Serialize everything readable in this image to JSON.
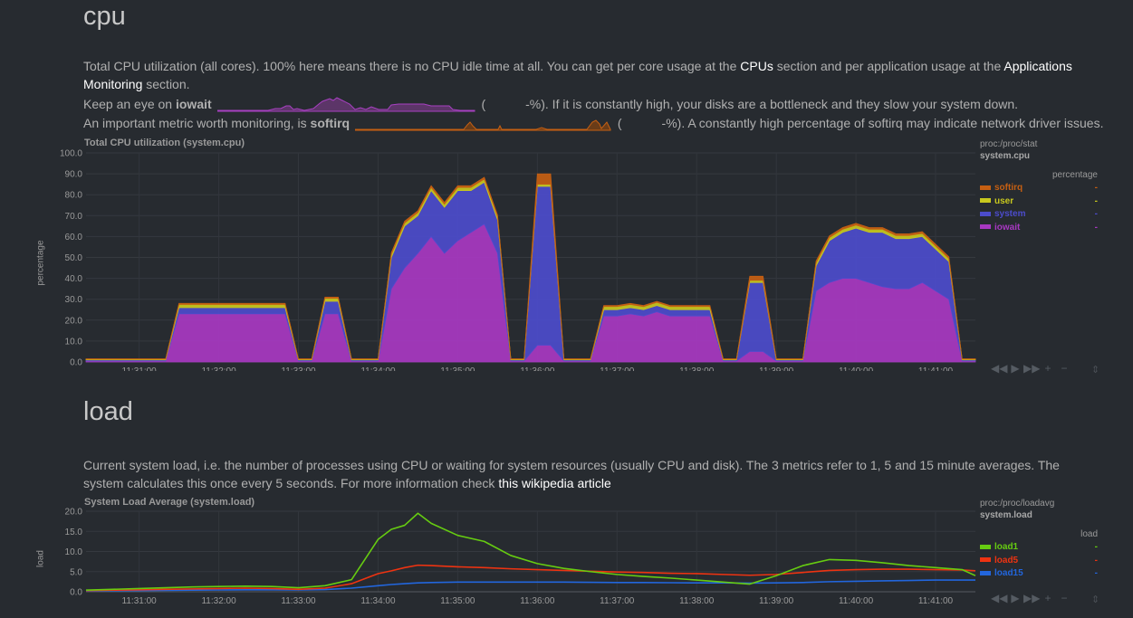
{
  "cpu": {
    "title": "cpu",
    "desc": {
      "p1": "Total CPU utilization (all cores). 100% here means there is no CPU idle time at all. You can get per core usage at the ",
      "link1": "CPUs",
      "p2": " section and per application usage at the ",
      "link2": "Applications Monitoring",
      "p3": " section."
    },
    "iowait_line": {
      "pre": "Keep an eye on ",
      "metric": "iowait",
      "paren_open": "(",
      "value": "-%",
      "post": "). If it is constantly high, your disks are a bottleneck and they slow your system down."
    },
    "softirq_line": {
      "pre": "An important metric worth monitoring, is ",
      "metric": "softirq",
      "paren_open": "(",
      "value": "-%",
      "post": "). A constantly high percentage of softirq may indicate network driver issues."
    },
    "chart_title": "Total CPU utilization (system.cpu)",
    "legend": {
      "context": "proc:/proc/stat",
      "chart_id": "system.cpu",
      "units": "percentage",
      "items": [
        {
          "name": "softirq",
          "value": "-",
          "color": "#c55f12"
        },
        {
          "name": "user",
          "value": "-",
          "color": "#c8c81e"
        },
        {
          "name": "system",
          "value": "-",
          "color": "#4c4ccc"
        },
        {
          "name": "iowait",
          "value": "-",
          "color": "#a838c2"
        }
      ]
    },
    "chart_data": {
      "type": "area",
      "title": "Total CPU utilization (system.cpu)",
      "ylabel": "percentage",
      "ylim": [
        0,
        100
      ],
      "yticks": [
        "0.0",
        "10.0",
        "20.0",
        "30.0",
        "40.0",
        "50.0",
        "60.0",
        "70.0",
        "80.0",
        "90.0",
        "100.0"
      ],
      "xticks": [
        "11:31:00",
        "11:32:00",
        "11:33:00",
        "11:34:00",
        "11:35:00",
        "11:36:00",
        "11:37:00",
        "11:38:00",
        "11:39:00",
        "11:40:00",
        "11:41:00"
      ],
      "x": [
        "11:30:20",
        "11:30:30",
        "11:30:40",
        "11:30:50",
        "11:31:00",
        "11:31:10",
        "11:31:20",
        "11:31:30",
        "11:31:40",
        "11:31:50",
        "11:32:00",
        "11:32:10",
        "11:32:20",
        "11:32:30",
        "11:32:40",
        "11:32:50",
        "11:33:00",
        "11:33:10",
        "11:33:20",
        "11:33:30",
        "11:33:40",
        "11:33:50",
        "11:34:00",
        "11:34:10",
        "11:34:20",
        "11:34:30",
        "11:34:40",
        "11:34:50",
        "11:35:00",
        "11:35:10",
        "11:35:20",
        "11:35:30",
        "11:35:40",
        "11:35:50",
        "11:36:00",
        "11:36:10",
        "11:36:20",
        "11:36:30",
        "11:36:40",
        "11:36:50",
        "11:37:00",
        "11:37:10",
        "11:37:20",
        "11:37:30",
        "11:37:40",
        "11:37:50",
        "11:38:00",
        "11:38:10",
        "11:38:20",
        "11:38:30",
        "11:38:40",
        "11:38:50",
        "11:39:00",
        "11:39:10",
        "11:39:20",
        "11:39:30",
        "11:39:40",
        "11:39:50",
        "11:40:00",
        "11:40:10",
        "11:40:20",
        "11:40:30",
        "11:40:40",
        "11:40:50",
        "11:41:00",
        "11:41:10",
        "11:41:20",
        "11:41:30"
      ],
      "series": [
        {
          "name": "iowait",
          "values": [
            0.5,
            0.5,
            0.5,
            0.5,
            0.5,
            0.5,
            0.5,
            23,
            23,
            23,
            23,
            23,
            23,
            23,
            23,
            23,
            0.5,
            0.5,
            23,
            23,
            0.5,
            0.5,
            0.5,
            35,
            45,
            52,
            60,
            52,
            58,
            62,
            66,
            52,
            0.5,
            0.5,
            8,
            8,
            0.5,
            0.5,
            0.5,
            22,
            22,
            23,
            22,
            24,
            22,
            22,
            22,
            22,
            0.5,
            0.5,
            5,
            5,
            0.5,
            0.5,
            0.5,
            34,
            38,
            40,
            40,
            38,
            36,
            35,
            35,
            38,
            34,
            30,
            0.5,
            0.5
          ]
        },
        {
          "name": "system",
          "values": [
            0.5,
            0.5,
            0.5,
            0.5,
            0.5,
            0.5,
            0.5,
            3,
            3,
            3,
            3,
            3,
            3,
            3,
            3,
            3,
            0.5,
            0.5,
            6,
            6,
            0.5,
            0.5,
            0.5,
            15,
            20,
            18,
            22,
            22,
            24,
            20,
            20,
            16,
            0.5,
            0.5,
            76,
            76,
            0.5,
            0.5,
            0.5,
            3,
            3,
            3,
            3,
            3,
            3,
            3,
            3,
            3,
            0.5,
            0.5,
            33,
            33,
            0.5,
            0.5,
            0.5,
            12,
            20,
            22,
            24,
            24,
            26,
            24,
            24,
            22,
            20,
            18,
            0.5,
            0.5
          ]
        },
        {
          "name": "user",
          "values": [
            0.3,
            0.3,
            0.3,
            0.3,
            0.3,
            0.3,
            0.3,
            1.5,
            1.5,
            1.5,
            1.5,
            1.5,
            1.5,
            1.5,
            1.5,
            1.5,
            0.3,
            0.3,
            1.5,
            1.5,
            0.3,
            0.3,
            0.3,
            1.5,
            1.5,
            1.5,
            1.5,
            1.5,
            1.5,
            1.5,
            1.5,
            1.5,
            0.3,
            0.3,
            1,
            1,
            0.3,
            0.3,
            0.3,
            1.5,
            1.5,
            1.5,
            1.5,
            1.5,
            1.5,
            1.5,
            1.5,
            1.5,
            0.3,
            0.3,
            1,
            1,
            0.3,
            0.3,
            0.3,
            1.5,
            1.5,
            1.5,
            1.5,
            1.5,
            1.5,
            1.5,
            1.5,
            1.5,
            1.5,
            1.5,
            0.3,
            0.3
          ]
        },
        {
          "name": "softirq",
          "values": [
            0.2,
            0.2,
            0.2,
            0.2,
            0.2,
            0.2,
            0.2,
            0.5,
            0.5,
            0.5,
            0.5,
            0.5,
            0.5,
            0.5,
            0.5,
            0.5,
            0.2,
            0.2,
            0.5,
            0.5,
            0.2,
            0.2,
            0.2,
            0.8,
            0.8,
            0.8,
            0.8,
            0.8,
            0.8,
            0.8,
            0.8,
            0.8,
            0.2,
            0.2,
            5,
            5,
            0.2,
            0.2,
            0.2,
            0.5,
            0.5,
            0.5,
            0.5,
            0.5,
            0.5,
            0.5,
            0.5,
            0.5,
            0.2,
            0.2,
            2,
            2,
            0.2,
            0.2,
            0.2,
            0.8,
            0.8,
            0.8,
            0.8,
            0.8,
            0.8,
            0.8,
            0.8,
            0.8,
            0.8,
            0.8,
            0.2,
            0.2
          ]
        }
      ],
      "legend": "right",
      "grid": true
    }
  },
  "load": {
    "title": "load",
    "desc": {
      "p1": "Current system load, i.e. the number of processes using CPU or waiting for system resources (usually CPU and disk). The 3 metrics refer to 1, 5 and 15 minute averages. The system calculates this once every 5 seconds. For more information check ",
      "link1": "this wikipedia article"
    },
    "chart_title": "System Load Average (system.load)",
    "legend": {
      "context": "proc:/proc/loadavg",
      "chart_id": "system.load",
      "units": "load",
      "items": [
        {
          "name": "load1",
          "value": "-",
          "color": "#66cc11"
        },
        {
          "name": "load5",
          "value": "-",
          "color": "#ee3311"
        },
        {
          "name": "load15",
          "value": "-",
          "color": "#2266dd"
        }
      ]
    },
    "chart_data": {
      "type": "line",
      "title": "System Load Average (system.load)",
      "ylabel": "load",
      "ylim": [
        0,
        20
      ],
      "yticks": [
        "0.0",
        "5.0",
        "10.0",
        "15.0",
        "20.0"
      ],
      "xticks": [
        "11:31:00",
        "11:32:00",
        "11:33:00",
        "11:34:00",
        "11:35:00",
        "11:36:00",
        "11:37:00",
        "11:38:00",
        "11:39:00",
        "11:40:00",
        "11:41:00"
      ],
      "x": [
        "11:30:20",
        "11:30:40",
        "11:31:00",
        "11:31:20",
        "11:31:40",
        "11:32:00",
        "11:32:20",
        "11:32:40",
        "11:33:00",
        "11:33:20",
        "11:33:40",
        "11:34:00",
        "11:34:10",
        "11:34:20",
        "11:34:30",
        "11:34:40",
        "11:35:00",
        "11:35:20",
        "11:35:40",
        "11:36:00",
        "11:36:20",
        "11:36:40",
        "11:37:00",
        "11:37:20",
        "11:37:40",
        "11:38:00",
        "11:38:20",
        "11:38:40",
        "11:39:00",
        "11:39:20",
        "11:39:40",
        "11:40:00",
        "11:40:20",
        "11:40:40",
        "11:41:00",
        "11:41:20",
        "11:41:30"
      ],
      "series": [
        {
          "name": "load1",
          "values": [
            0.4,
            0.6,
            0.8,
            1.0,
            1.2,
            1.3,
            1.4,
            1.3,
            1.0,
            1.5,
            3.0,
            13.0,
            15.5,
            16.5,
            19.5,
            17.0,
            14.0,
            12.5,
            9.0,
            7.0,
            5.8,
            5.0,
            4.3,
            3.8,
            3.4,
            2.9,
            2.4,
            1.9,
            4.0,
            6.5,
            8.0,
            7.8,
            7.2,
            6.5,
            6.0,
            5.5,
            4.0
          ]
        },
        {
          "name": "load5",
          "values": [
            0.3,
            0.4,
            0.5,
            0.6,
            0.7,
            0.8,
            0.9,
            0.8,
            0.6,
            0.9,
            2.0,
            4.5,
            5.2,
            6.0,
            6.6,
            6.5,
            6.2,
            6.0,
            5.7,
            5.5,
            5.3,
            5.1,
            4.9,
            4.8,
            4.6,
            4.5,
            4.3,
            4.1,
            4.3,
            4.8,
            5.3,
            5.5,
            5.6,
            5.6,
            5.5,
            5.4,
            5.2
          ]
        },
        {
          "name": "load15",
          "values": [
            0.2,
            0.25,
            0.3,
            0.35,
            0.4,
            0.45,
            0.5,
            0.5,
            0.45,
            0.55,
            0.9,
            1.5,
            1.8,
            2.0,
            2.2,
            2.3,
            2.4,
            2.4,
            2.4,
            2.4,
            2.4,
            2.35,
            2.3,
            2.3,
            2.25,
            2.2,
            2.2,
            2.15,
            2.2,
            2.3,
            2.5,
            2.6,
            2.7,
            2.8,
            2.9,
            2.9,
            2.9
          ]
        }
      ],
      "legend": "right",
      "grid": true
    }
  }
}
